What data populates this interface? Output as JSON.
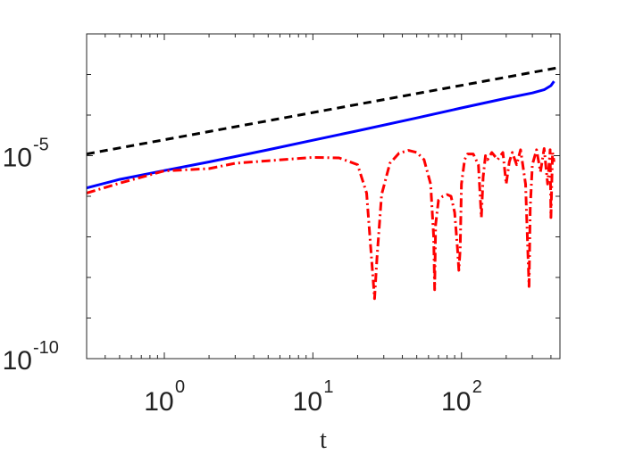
{
  "chart_data": {
    "type": "line",
    "title": "",
    "xlabel": "t",
    "ylabel": "",
    "xscale": "log",
    "yscale": "log",
    "xlim": [
      0.3,
      460
    ],
    "ylim": [
      1e-10,
      0.01
    ],
    "grid": false,
    "legend": "none",
    "xticks": [
      {
        "value": 1,
        "base": "10",
        "exp": "0"
      },
      {
        "value": 10,
        "base": "10",
        "exp": "1"
      },
      {
        "value": 100,
        "base": "10",
        "exp": "2"
      }
    ],
    "yticks": [
      {
        "value": 1e-10,
        "base": "10",
        "exp": "-10"
      },
      {
        "value": 1e-05,
        "base": "10",
        "exp": "-5"
      }
    ],
    "series": [
      {
        "color": "#000000",
        "style": "dashed",
        "x": [
          0.3,
          460
        ],
        "y": [
          1.1e-05,
          0.0015
        ]
      },
      {
        "color": "#0000ff",
        "style": "solid",
        "x": [
          0.3,
          0.5,
          1,
          2,
          5,
          10,
          20,
          50,
          100,
          200,
          300,
          360,
          400,
          420
        ],
        "y": [
          1.6e-06,
          2.6e-06,
          4.3e-06,
          7e-06,
          1.4e-05,
          2.4e-05,
          4.1e-05,
          8.5e-05,
          0.00015,
          0.00026,
          0.00035,
          0.00042,
          0.00053,
          0.00068
        ]
      },
      {
        "color": "#ff0000",
        "style": "dashdot",
        "x": [
          0.3,
          0.5,
          1,
          2,
          3,
          5,
          10,
          15,
          20,
          23,
          25,
          26,
          27,
          29,
          33,
          38,
          44,
          50,
          56,
          62,
          65,
          66,
          67,
          70,
          75,
          80,
          85,
          90,
          94,
          96,
          98,
          100,
          105,
          110,
          120,
          130,
          136,
          140,
          145,
          150,
          160,
          175,
          190,
          200,
          210,
          220,
          235,
          250,
          270,
          285,
          290,
          300,
          320,
          340,
          360,
          380,
          395,
          400,
          410,
          420
        ],
        "y": [
          1.2e-06,
          2.1e-06,
          4.2e-06,
          4.8e-06,
          6.5e-06,
          7.5e-06,
          9.1e-06,
          8.8e-06,
          6e-06,
          1.2e-06,
          2e-08,
          3e-09,
          3e-08,
          1.1e-06,
          6.5e-06,
          1.15e-05,
          1.35e-05,
          1.2e-05,
          8e-06,
          2e-06,
          1e-07,
          5e-09,
          2e-07,
          8e-07,
          1e-06,
          1.1e-06,
          1e-06,
          4e-07,
          5e-08,
          1.5e-08,
          5e-08,
          2e-06,
          8e-06,
          1.1e-05,
          1.1e-05,
          6e-06,
          3e-07,
          3e-06,
          1e-05,
          8e-06,
          1.2e-05,
          8e-06,
          1.2e-05,
          2e-06,
          7e-06,
          1.2e-05,
          6e-06,
          1.4e-05,
          2e-06,
          6e-09,
          5e-07,
          6e-06,
          1.4e-05,
          4e-06,
          1.5e-05,
          2e-06,
          1.4e-05,
          3e-07,
          1.2e-05,
          7e-06
        ]
      }
    ]
  }
}
